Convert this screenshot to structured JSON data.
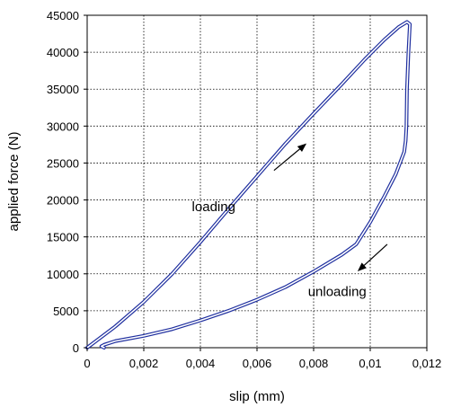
{
  "chart_data": {
    "type": "line",
    "title": "",
    "xlabel": "slip (mm)",
    "ylabel": "applied force (N)",
    "xlim": [
      0,
      0.012
    ],
    "ylim": [
      0,
      45000
    ],
    "x_ticks": [
      0,
      0.002,
      0.004,
      0.006,
      0.008,
      0.01,
      0.012
    ],
    "x_tick_labels": [
      "0",
      "0,002",
      "0,004",
      "0,006",
      "0,008",
      "0,01",
      "0,012"
    ],
    "y_ticks": [
      0,
      5000,
      10000,
      15000,
      20000,
      25000,
      30000,
      35000,
      40000,
      45000
    ],
    "y_tick_labels": [
      "0",
      "5000",
      "10000",
      "15000",
      "20000",
      "25000",
      "30000",
      "35000",
      "40000",
      "45000"
    ],
    "grid": true,
    "legend": "none",
    "line_color": "#1f2f9f",
    "series": [
      {
        "points": [
          [
            0.0,
            0
          ],
          [
            0.001,
            2900
          ],
          [
            0.002,
            6200
          ],
          [
            0.003,
            10000
          ],
          [
            0.004,
            14300
          ],
          [
            0.005,
            18800
          ],
          [
            0.006,
            23200
          ],
          [
            0.007,
            27600
          ],
          [
            0.008,
            31700
          ],
          [
            0.009,
            35700
          ],
          [
            0.0098,
            39000
          ],
          [
            0.0105,
            41700
          ],
          [
            0.011,
            43400
          ],
          [
            0.0113,
            44100
          ],
          [
            0.0114,
            43800
          ],
          [
            0.01135,
            40000
          ],
          [
            0.0113,
            35000
          ],
          [
            0.01128,
            30000
          ],
          [
            0.01125,
            28000
          ],
          [
            0.0112,
            26500
          ],
          [
            0.0109,
            23500
          ],
          [
            0.0105,
            20500
          ],
          [
            0.01,
            17000
          ],
          [
            0.0095,
            14000
          ],
          [
            0.009,
            12600
          ],
          [
            0.008,
            10300
          ],
          [
            0.007,
            8200
          ],
          [
            0.006,
            6500
          ],
          [
            0.005,
            5000
          ],
          [
            0.004,
            3700
          ],
          [
            0.003,
            2500
          ],
          [
            0.002,
            1600
          ],
          [
            0.001,
            900
          ],
          [
            0.0006,
            400
          ],
          [
            0.0005,
            200
          ],
          [
            0.0006,
            0
          ]
        ]
      }
    ],
    "annotations": [
      {
        "text": "loading",
        "x": 0.0037,
        "y": 18500,
        "arrow_from": [
          0.0066,
          24000
        ],
        "arrow_to": [
          0.0077,
          27500
        ]
      },
      {
        "text": "unloading",
        "x": 0.0078,
        "y": 7000,
        "arrow_from": [
          0.0106,
          14000
        ],
        "arrow_to": [
          0.0096,
          10500
        ]
      }
    ]
  }
}
